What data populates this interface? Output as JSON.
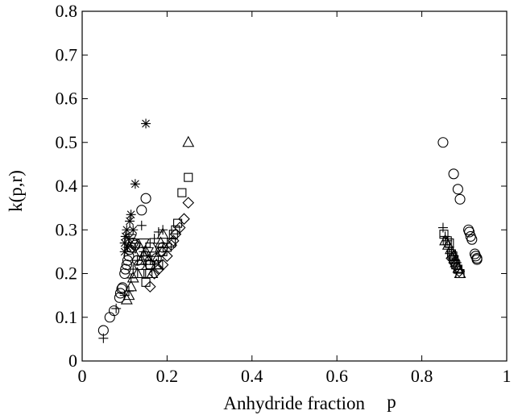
{
  "chart_data": {
    "type": "scatter",
    "title": "",
    "xlabel": "Anhydride fraction",
    "xlabel_suffix": "p",
    "ylabel": "k(p,r)",
    "xlim": [
      0,
      1
    ],
    "ylim": [
      0,
      0.8
    ],
    "xticks": [
      0,
      0.2,
      0.4,
      0.6,
      0.8,
      1
    ],
    "xtick_labels": [
      "0",
      "0.2",
      "0.4",
      "0.6",
      "0.8",
      "1"
    ],
    "yticks": [
      0,
      0.1,
      0.2,
      0.3,
      0.4,
      0.5,
      0.6,
      0.7,
      0.8
    ],
    "ytick_labels": [
      "0",
      "0.1",
      "0.2",
      "0.3",
      "0.4",
      "0.5",
      "0.6",
      "0.7",
      "0.8"
    ],
    "grid": false,
    "series": [
      {
        "marker": "circle",
        "points": [
          [
            0.05,
            0.07
          ],
          [
            0.065,
            0.1
          ],
          [
            0.075,
            0.115
          ],
          [
            0.088,
            0.145
          ],
          [
            0.09,
            0.155
          ],
          [
            0.093,
            0.165
          ],
          [
            0.095,
            0.168
          ],
          [
            0.1,
            0.2
          ],
          [
            0.102,
            0.21
          ],
          [
            0.105,
            0.22
          ],
          [
            0.107,
            0.23
          ],
          [
            0.11,
            0.24
          ],
          [
            0.112,
            0.255
          ],
          [
            0.115,
            0.26
          ],
          [
            0.12,
            0.27
          ],
          [
            0.125,
            0.265
          ],
          [
            0.13,
            0.23
          ],
          [
            0.135,
            0.22
          ],
          [
            0.14,
            0.345
          ],
          [
            0.15,
            0.372
          ],
          [
            0.16,
            0.22
          ],
          [
            0.175,
            0.235
          ],
          [
            0.185,
            0.25
          ],
          [
            0.19,
            0.26
          ],
          [
            0.85,
            0.5
          ],
          [
            0.875,
            0.428
          ],
          [
            0.885,
            0.393
          ],
          [
            0.89,
            0.37
          ],
          [
            0.91,
            0.3
          ],
          [
            0.912,
            0.295
          ],
          [
            0.915,
            0.285
          ],
          [
            0.918,
            0.278
          ],
          [
            0.925,
            0.245
          ],
          [
            0.927,
            0.24
          ],
          [
            0.93,
            0.235
          ],
          [
            0.93,
            0.232
          ]
        ]
      },
      {
        "marker": "square",
        "points": [
          [
            0.14,
            0.2
          ],
          [
            0.15,
            0.18
          ],
          [
            0.16,
            0.22
          ],
          [
            0.17,
            0.23
          ],
          [
            0.18,
            0.22
          ],
          [
            0.19,
            0.25
          ],
          [
            0.2,
            0.26
          ],
          [
            0.21,
            0.27
          ],
          [
            0.215,
            0.29
          ],
          [
            0.22,
            0.3
          ],
          [
            0.225,
            0.315
          ],
          [
            0.235,
            0.385
          ],
          [
            0.25,
            0.42
          ],
          [
            0.155,
            0.2
          ],
          [
            0.852,
            0.29
          ],
          [
            0.86,
            0.275
          ],
          [
            0.865,
            0.27
          ],
          [
            0.87,
            0.245
          ],
          [
            0.873,
            0.24
          ],
          [
            0.876,
            0.232
          ],
          [
            0.88,
            0.22
          ],
          [
            0.885,
            0.21
          ],
          [
            0.89,
            0.2
          ]
        ]
      },
      {
        "marker": "triangle-up",
        "points": [
          [
            0.105,
            0.14
          ],
          [
            0.11,
            0.15
          ],
          [
            0.115,
            0.17
          ],
          [
            0.12,
            0.19
          ],
          [
            0.13,
            0.2
          ],
          [
            0.14,
            0.23
          ],
          [
            0.145,
            0.24
          ],
          [
            0.15,
            0.25
          ],
          [
            0.155,
            0.23
          ],
          [
            0.165,
            0.2
          ],
          [
            0.175,
            0.22
          ],
          [
            0.185,
            0.27
          ],
          [
            0.19,
            0.29
          ],
          [
            0.25,
            0.5
          ],
          [
            0.855,
            0.275
          ],
          [
            0.862,
            0.265
          ],
          [
            0.868,
            0.255
          ],
          [
            0.875,
            0.24
          ],
          [
            0.88,
            0.225
          ],
          [
            0.886,
            0.212
          ],
          [
            0.89,
            0.2
          ]
        ]
      },
      {
        "marker": "triangle-down",
        "points": [
          [
            0.115,
            0.28
          ],
          [
            0.12,
            0.27
          ],
          [
            0.125,
            0.26
          ],
          [
            0.135,
            0.25
          ],
          [
            0.145,
            0.27
          ],
          [
            0.155,
            0.25
          ],
          [
            0.165,
            0.24
          ],
          [
            0.18,
            0.26
          ]
        ]
      },
      {
        "marker": "diamond",
        "points": [
          [
            0.16,
            0.17
          ],
          [
            0.17,
            0.2
          ],
          [
            0.18,
            0.21
          ],
          [
            0.19,
            0.22
          ],
          [
            0.2,
            0.24
          ],
          [
            0.21,
            0.265
          ],
          [
            0.215,
            0.275
          ],
          [
            0.22,
            0.29
          ],
          [
            0.23,
            0.305
          ],
          [
            0.24,
            0.325
          ],
          [
            0.25,
            0.362
          ],
          [
            0.87,
            0.235
          ],
          [
            0.876,
            0.225
          ],
          [
            0.882,
            0.215
          ],
          [
            0.888,
            0.205
          ]
        ]
      },
      {
        "marker": "plus",
        "points": [
          [
            0.05,
            0.052
          ],
          [
            0.08,
            0.12
          ],
          [
            0.1,
            0.15
          ],
          [
            0.11,
            0.16
          ],
          [
            0.115,
            0.19
          ],
          [
            0.12,
            0.21
          ],
          [
            0.13,
            0.23
          ],
          [
            0.14,
            0.24
          ],
          [
            0.145,
            0.25
          ],
          [
            0.15,
            0.26
          ],
          [
            0.16,
            0.27
          ],
          [
            0.17,
            0.28
          ],
          [
            0.18,
            0.295
          ],
          [
            0.19,
            0.3
          ],
          [
            0.14,
            0.31
          ],
          [
            0.85,
            0.305
          ],
          [
            0.855,
            0.285
          ],
          [
            0.86,
            0.275
          ],
          [
            0.865,
            0.26
          ],
          [
            0.87,
            0.25
          ],
          [
            0.875,
            0.24
          ],
          [
            0.878,
            0.232
          ],
          [
            0.882,
            0.225
          ]
        ]
      },
      {
        "marker": "asterisk",
        "points": [
          [
            0.1,
            0.25
          ],
          [
            0.1,
            0.27
          ],
          [
            0.102,
            0.285
          ],
          [
            0.105,
            0.3
          ],
          [
            0.107,
            0.26
          ],
          [
            0.11,
            0.28
          ],
          [
            0.112,
            0.32
          ],
          [
            0.115,
            0.335
          ],
          [
            0.12,
            0.3
          ],
          [
            0.125,
            0.405
          ],
          [
            0.15,
            0.543
          ]
        ]
      }
    ]
  }
}
